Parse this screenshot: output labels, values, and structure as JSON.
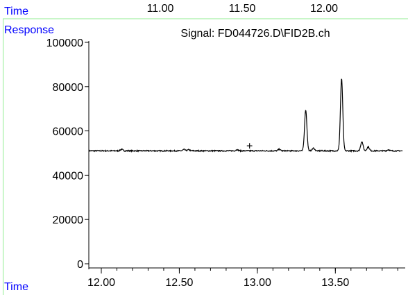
{
  "top_panel": {
    "time_label": "Time",
    "ticks": [
      "11.00",
      "11.50",
      "12.00"
    ]
  },
  "colors": {
    "axis_label": "#0000ff",
    "frame": "#90ee90",
    "axis": "#000000",
    "trace": "#000000"
  },
  "chart_data": {
    "type": "line",
    "title": "Signal: FD044726.D\\FID2B.ch",
    "xlabel": "Time",
    "ylabel": "Response",
    "xlim": [
      11.92,
      13.93
    ],
    "ylim": [
      0,
      100000
    ],
    "x_ticks": [
      "12.00",
      "12.50",
      "13.00",
      "13.50"
    ],
    "y_ticks": [
      "0",
      "20000",
      "40000",
      "60000",
      "80000",
      "100000"
    ],
    "baseline": 51000,
    "marker": {
      "symbol": "+",
      "x": 12.95,
      "y": 53500
    },
    "peaks": [
      {
        "x": 12.13,
        "y": 51700
      },
      {
        "x": 12.53,
        "y": 51600
      },
      {
        "x": 12.56,
        "y": 51500
      },
      {
        "x": 12.87,
        "y": 51500
      },
      {
        "x": 13.14,
        "y": 51700
      },
      {
        "x": 13.31,
        "y": 69500
      },
      {
        "x": 13.36,
        "y": 52200
      },
      {
        "x": 13.54,
        "y": 83500
      },
      {
        "x": 13.67,
        "y": 55200
      },
      {
        "x": 13.71,
        "y": 52800
      },
      {
        "x": 13.84,
        "y": 51500
      }
    ]
  }
}
